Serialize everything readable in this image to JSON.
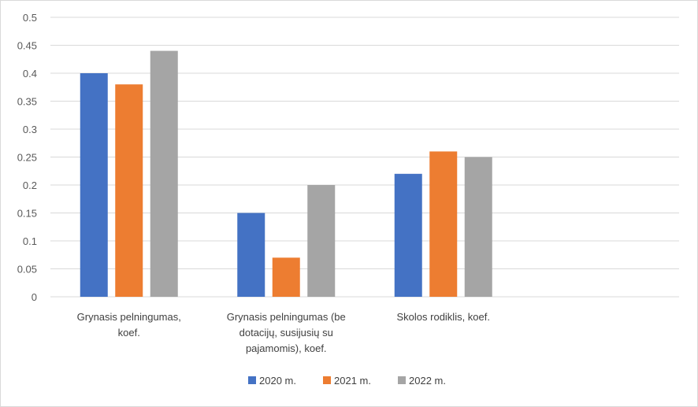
{
  "chart_data": {
    "type": "bar",
    "title": "",
    "xlabel": "",
    "ylabel": "",
    "ylim": [
      0,
      0.5
    ],
    "yticks": [
      "0",
      "0.05",
      "0.1",
      "0.15",
      "0.2",
      "0.25",
      "0.3",
      "0.35",
      "0.4",
      "0.45",
      "0.5"
    ],
    "grid": true,
    "legend": "bottom",
    "categories": [
      [
        "Grynasis pelningumas,",
        "koef."
      ],
      [
        "Grynasis pelningumas (be",
        "dotacijų, susijusių su",
        "pajamomis), koef."
      ],
      [
        "Skolos rodiklis, koef."
      ],
      [
        ""
      ]
    ],
    "series": [
      {
        "name": "2020 m.",
        "color": "#4472c4",
        "values": [
          0.4,
          0.15,
          0.22,
          null
        ]
      },
      {
        "name": "2021 m.",
        "color": "#ed7d31",
        "values": [
          0.38,
          0.07,
          0.26,
          null
        ]
      },
      {
        "name": "2022 m.",
        "color": "#a5a5a5",
        "values": [
          0.44,
          0.2,
          0.25,
          null
        ]
      }
    ]
  }
}
